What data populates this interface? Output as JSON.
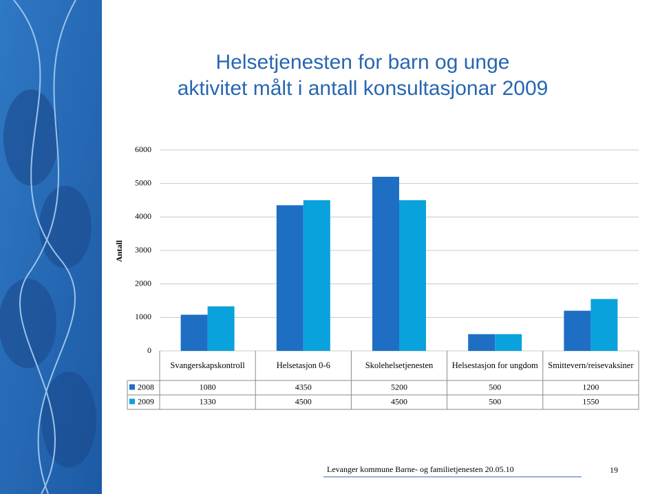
{
  "chart_data": {
    "type": "bar",
    "title": [
      "Helsetjenesten for barn og unge",
      "aktivitet målt i antall konsultasjonar 2009"
    ],
    "y_label": "Antall",
    "categories": [
      "Svangerskapskontroll",
      "Helsetasjon 0-6",
      "Skolehelsetjenesten",
      "Helsestasjon for ungdom",
      "Smittevern/reisevaksiner"
    ],
    "series": [
      {
        "name": "2008",
        "color": "#1e6ec4",
        "values": [
          1080,
          4350,
          5200,
          500,
          1200
        ]
      },
      {
        "name": "2009",
        "color": "#0aa2dc",
        "values": [
          1330,
          4500,
          4500,
          500,
          1550
        ]
      }
    ],
    "ylim": [
      0,
      6000
    ],
    "yticks": [
      0,
      1000,
      2000,
      3000,
      4000,
      5000,
      6000
    ],
    "grid": true,
    "data_table": true
  },
  "footer": {
    "text": "Levanger kommune Barne- og familietjenesten 20.05.10",
    "page": "19"
  }
}
